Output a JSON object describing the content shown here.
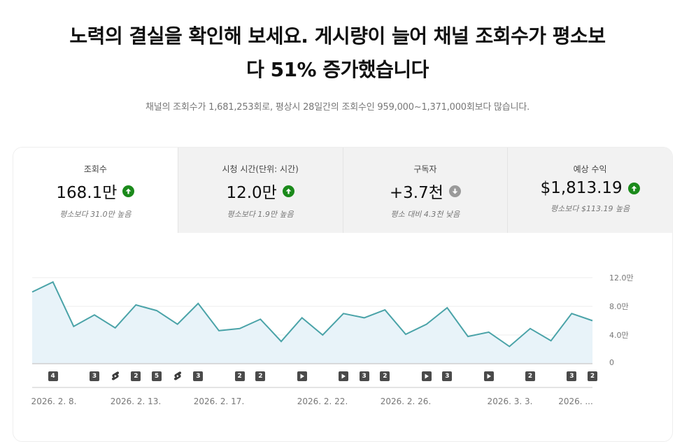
{
  "headline": {
    "line1": "노력의 결실을 확인해 보세요. 게시량이 늘어 채널 조회수가 평소보",
    "line2": "다 51% 증가했습니다"
  },
  "subline": "채널의 조회수가 1,681,253회로, 평상시 28일간의 조회수인 959,000~1,371,000회보다 많습니다.",
  "tabs": [
    {
      "label": "조회수",
      "value": "168.1만",
      "trend": "up",
      "sub": "평소보다 31.0만 높음",
      "selected": true
    },
    {
      "label": "시청 시간(단위: 시간)",
      "value": "12.0만",
      "trend": "up",
      "sub": "평소보다 1.9만 높음",
      "selected": false
    },
    {
      "label": "구독자",
      "value": "+3.7천",
      "trend": "down",
      "sub": "평소 대비 4.3천 낮음",
      "selected": false
    },
    {
      "label": "예상 수익",
      "value": "$1,813.19",
      "trend": "up",
      "sub": "평소보다 $113.19 높음",
      "selected": false
    }
  ],
  "colors": {
    "line": "#4aa3a8",
    "fill": "#e8f3f9",
    "trend_up": "#1b8a1b",
    "trend_down": "#9a9a9a",
    "marker": "#4a4a4a"
  },
  "chart_data": {
    "type": "area",
    "title": "조회수",
    "xlabel": "",
    "ylabel": "",
    "ylim": [
      0,
      120000
    ],
    "y_ticks": [
      "0",
      "4.0만",
      "8.0만",
      "12.0만"
    ],
    "x_tick_labels": [
      "2026. 2. 8.",
      "2026. 2. 13.",
      "2026. 2. 17.",
      "2026. 2. 22.",
      "2026. 2. 26.",
      "2026. 3. 3.",
      "2026. ..."
    ],
    "grid": true,
    "x": [
      "2/7",
      "2/8",
      "2/9",
      "2/10",
      "2/11",
      "2/12",
      "2/13",
      "2/14",
      "2/15",
      "2/16",
      "2/17",
      "2/18",
      "2/19",
      "2/20",
      "2/21",
      "2/22",
      "2/23",
      "2/24",
      "2/25",
      "2/26",
      "2/27",
      "2/28",
      "3/1",
      "3/2",
      "3/3",
      "3/4",
      "3/5",
      "3/6"
    ],
    "values": [
      100000,
      114000,
      52000,
      68000,
      50000,
      82000,
      74000,
      55000,
      84000,
      46000,
      49000,
      62000,
      31000,
      64000,
      40000,
      70000,
      64000,
      75000,
      41000,
      55000,
      78000,
      38000,
      44000,
      24000,
      49000,
      32000,
      70000,
      60000
    ],
    "markers": [
      {
        "index": 1,
        "type": "count",
        "label": "4"
      },
      {
        "index": 3,
        "type": "count",
        "label": "3"
      },
      {
        "index": 4,
        "type": "shorts",
        "label": ""
      },
      {
        "index": 5,
        "type": "count",
        "label": "2"
      },
      {
        "index": 6,
        "type": "count",
        "label": "5"
      },
      {
        "index": 7,
        "type": "shorts",
        "label": ""
      },
      {
        "index": 8,
        "type": "count",
        "label": "3"
      },
      {
        "index": 10,
        "type": "count",
        "label": "2"
      },
      {
        "index": 11,
        "type": "count",
        "label": "2"
      },
      {
        "index": 13,
        "type": "video",
        "label": ""
      },
      {
        "index": 15,
        "type": "video",
        "label": ""
      },
      {
        "index": 16,
        "type": "count",
        "label": "3"
      },
      {
        "index": 17,
        "type": "count",
        "label": "2"
      },
      {
        "index": 19,
        "type": "video",
        "label": ""
      },
      {
        "index": 20,
        "type": "count",
        "label": "3"
      },
      {
        "index": 22,
        "type": "video",
        "label": ""
      },
      {
        "index": 24,
        "type": "count",
        "label": "2"
      },
      {
        "index": 26,
        "type": "count",
        "label": "3"
      },
      {
        "index": 27,
        "type": "count",
        "label": "2"
      }
    ]
  }
}
